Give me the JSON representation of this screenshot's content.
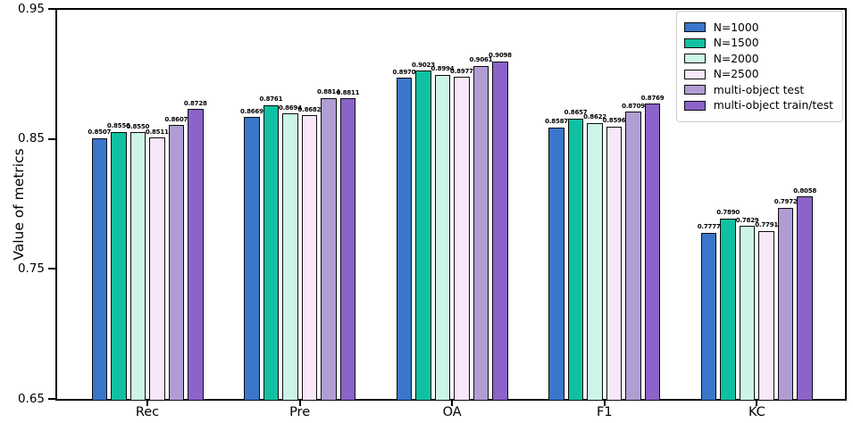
{
  "chart_data": {
    "type": "bar",
    "title": "",
    "xlabel": "",
    "ylabel": "Value of metrics",
    "categories": [
      "Rec",
      "Pre",
      "OA",
      "F1",
      "KC"
    ],
    "series": [
      {
        "name": "N=1000",
        "color": "#3A76CB",
        "values": [
          0.8507,
          0.8669,
          0.897,
          0.8587,
          0.7777
        ]
      },
      {
        "name": "N=1500",
        "color": "#0FC1A1",
        "values": [
          0.8556,
          0.8761,
          0.9023,
          0.8657,
          0.789
        ]
      },
      {
        "name": "N=2000",
        "color": "#CCF5E8",
        "values": [
          0.855,
          0.8694,
          0.8994,
          0.8622,
          0.7829
        ]
      },
      {
        "name": "N=2500",
        "color": "#F8E7F8",
        "values": [
          0.8511,
          0.8682,
          0.8977,
          0.8596,
          0.7791
        ]
      },
      {
        "name": "multi-object test",
        "color": "#B19DD3",
        "values": [
          0.8607,
          0.8814,
          0.9061,
          0.8709,
          0.7972
        ]
      },
      {
        "name": "multi-object train/test",
        "color": "#8B63C9",
        "values": [
          0.8728,
          0.8811,
          0.9098,
          0.8769,
          0.8058
        ]
      }
    ],
    "ylim": [
      0.65,
      0.95
    ],
    "yticks": [
      0.65,
      0.75,
      0.85,
      0.95
    ],
    "grid": false,
    "legend_position": "upper right",
    "bar_edge_color": "#000000",
    "value_label_decimals": 4
  }
}
